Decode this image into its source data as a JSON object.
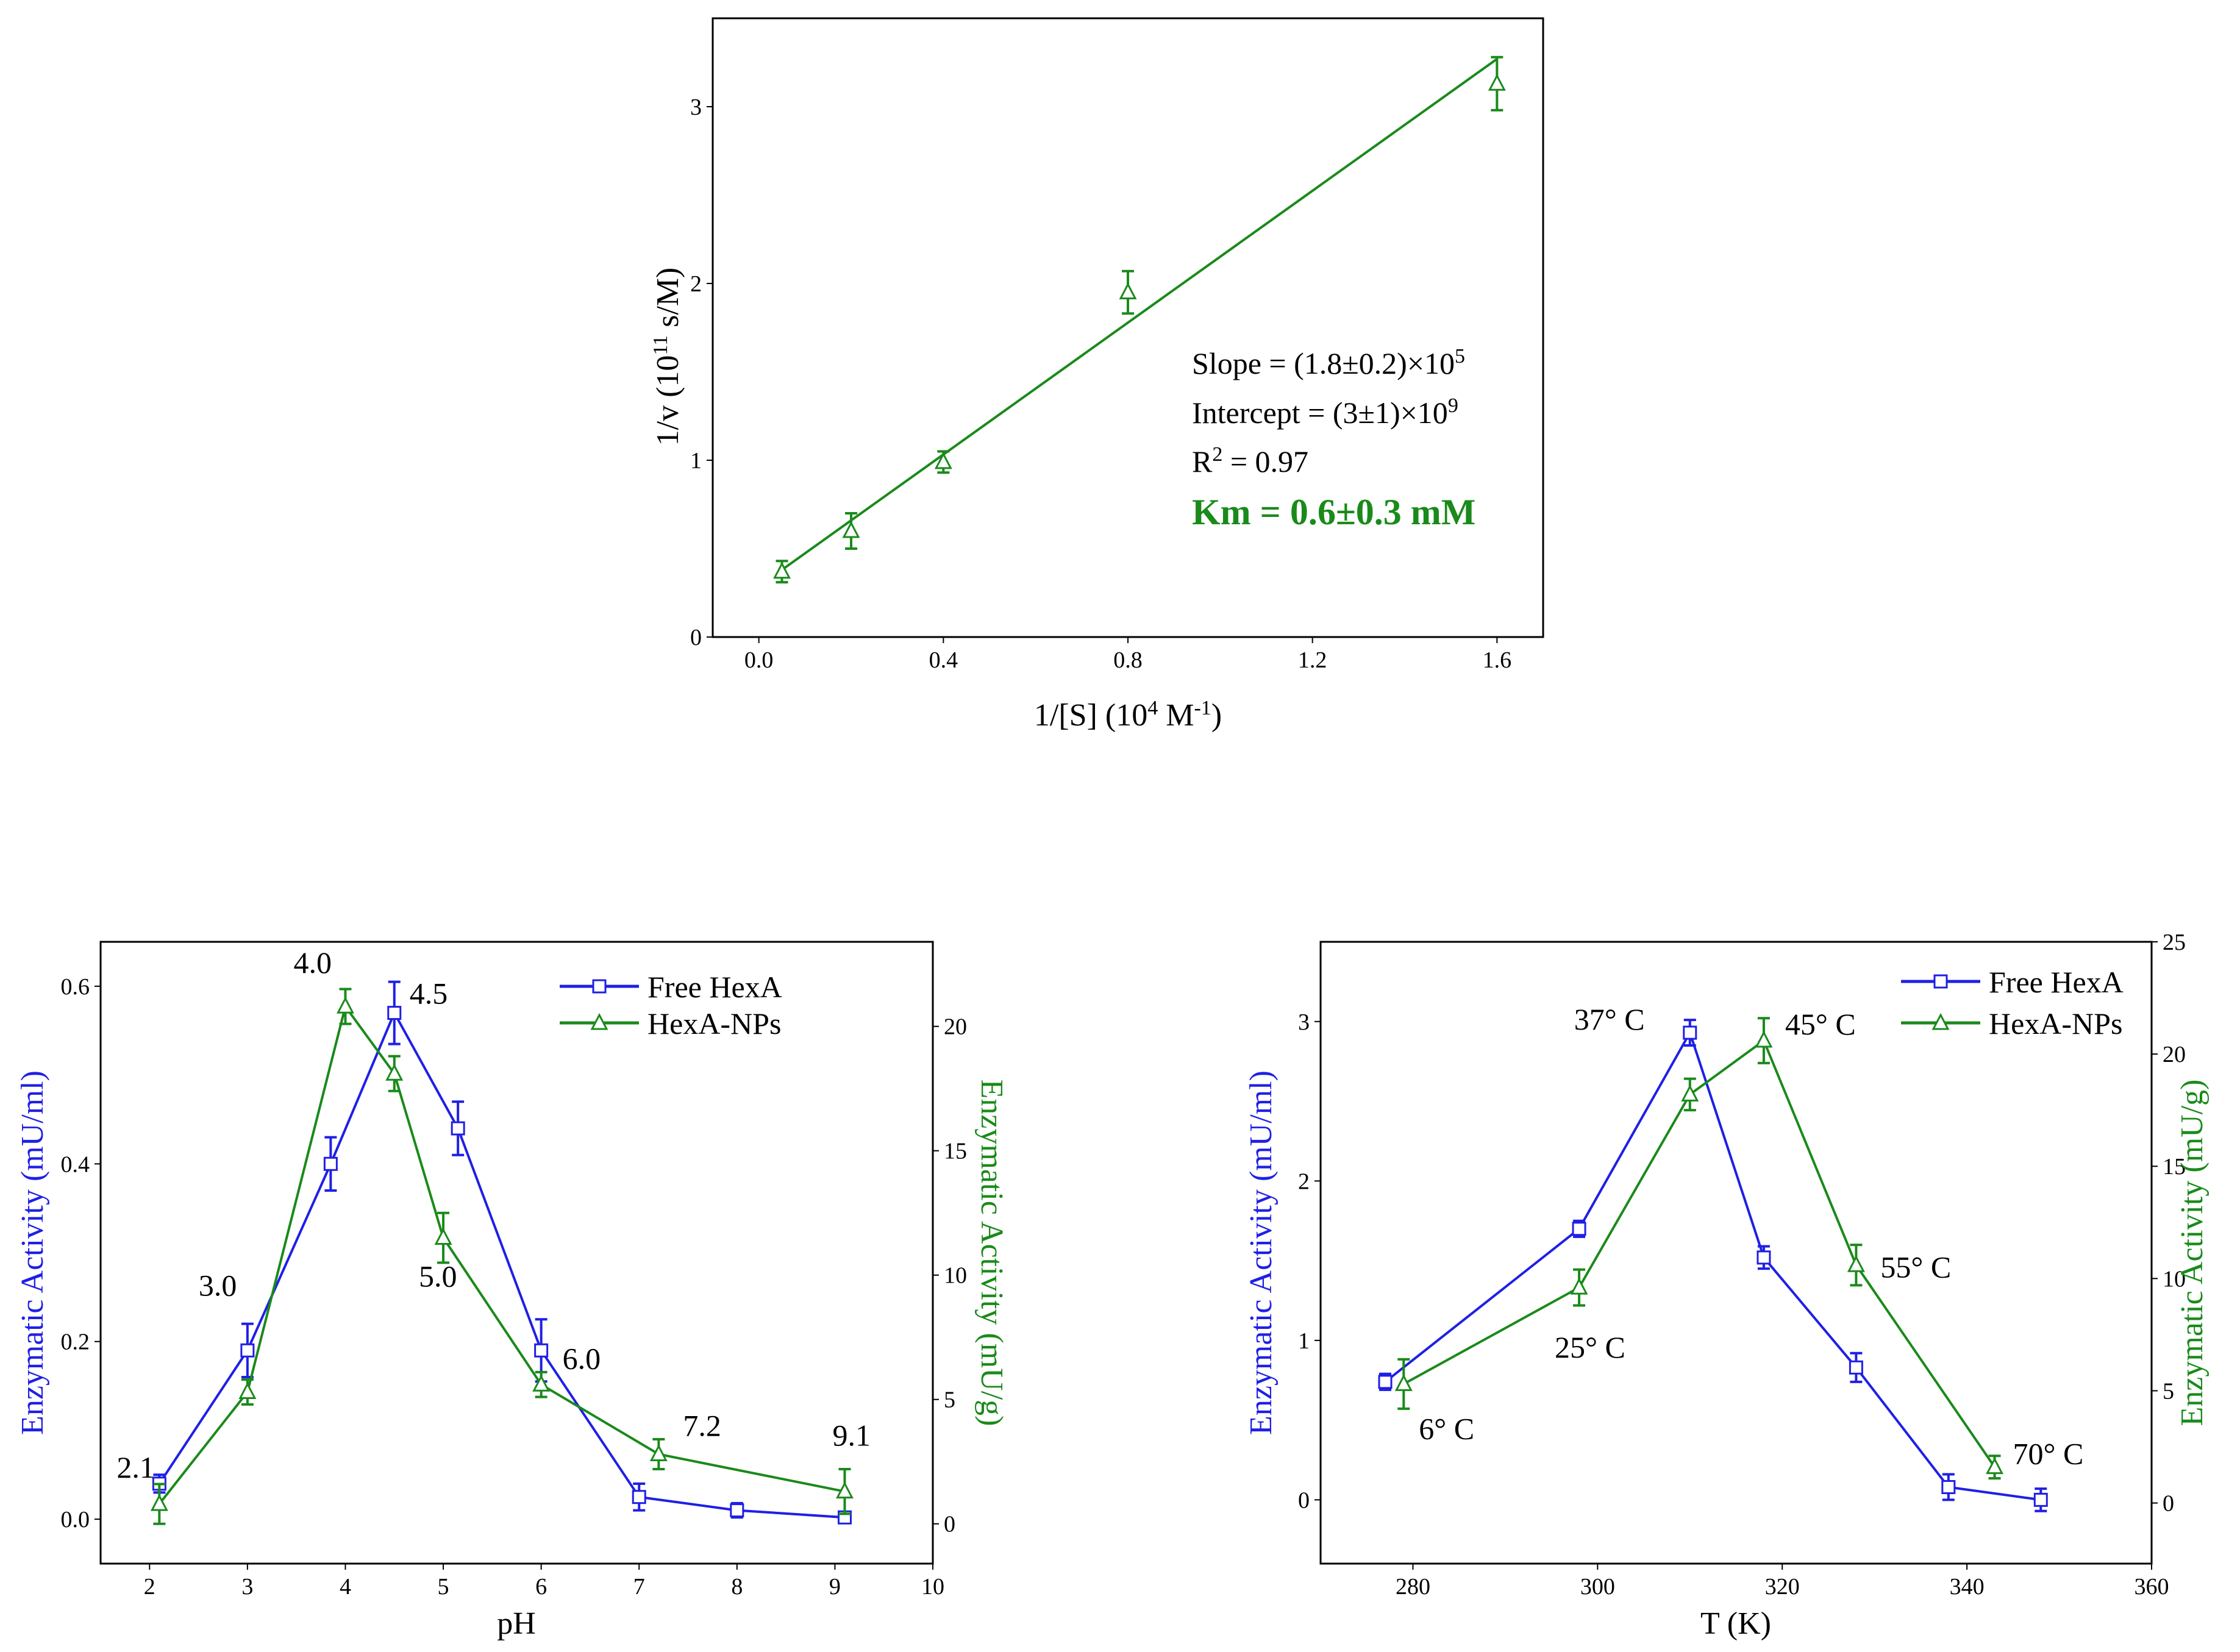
{
  "colors": {
    "free": "#1f1fe6",
    "nps": "#1a8a1a",
    "axis": "#000000"
  },
  "chart_data": [
    {
      "type": "line",
      "title": "",
      "xlabel": "1/[S] (10",
      "xlabel_sup": "4",
      "xlabel_unit": " M",
      "xlabel_unit_sup": "-1",
      "xlabel_end": ")",
      "ylabel": "1/v (10",
      "ylabel_sup": "11",
      "ylabel_end": " s/M)",
      "xlim": [
        -0.1,
        1.7
      ],
      "ylim": [
        0,
        3.5
      ],
      "xticks": [
        "0.0",
        "0.4",
        "0.8",
        "1.2",
        "1.6"
      ],
      "xtick_values": [
        0,
        0.4,
        0.8,
        1.2,
        1.6
      ],
      "yticks": [
        "0",
        "1",
        "2",
        "3"
      ],
      "ytick_values": [
        0,
        1,
        2,
        3
      ],
      "series": [
        {
          "name": "data",
          "x": [
            0.05,
            0.2,
            0.4,
            0.8,
            1.6
          ],
          "y": [
            0.37,
            0.6,
            0.99,
            1.95,
            3.13
          ],
          "err": [
            0.06,
            0.1,
            0.06,
            0.12,
            0.15
          ]
        }
      ],
      "fit": {
        "x": [
          0.05,
          1.6
        ],
        "y": [
          0.38,
          3.27
        ]
      },
      "annotation": {
        "slope_text": "Slope = (1.8±0.2)×10",
        "slope_sup": "5",
        "intercept_text": "Intercept = (3±1)×10",
        "intercept_sup": "9",
        "r2_prefix": "R",
        "r2_sup": "2",
        "r2_suffix": " = 0.97",
        "km_text": "Km = 0.6±0.3 mM"
      }
    },
    {
      "type": "line",
      "xlabel": "pH",
      "ylabel_left": "Enzymatic Activity (mU/ml)",
      "ylabel_right": "Enzymatic Activity  (mU/g)",
      "xlim": [
        1.5,
        10
      ],
      "ylim_left": [
        -0.05,
        0.65
      ],
      "ylim_right": [
        -1.6,
        23.4
      ],
      "xticks": [
        "2",
        "3",
        "4",
        "5",
        "6",
        "7",
        "8",
        "9",
        "10"
      ],
      "xtick_values": [
        2,
        3,
        4,
        5,
        6,
        7,
        8,
        9,
        10
      ],
      "yticks_left": [
        "0.0",
        "0.2",
        "0.4",
        "0.6"
      ],
      "ytick_values_left": [
        0,
        0.2,
        0.4,
        0.6
      ],
      "yticks_right": [
        "0",
        "5",
        "10",
        "15",
        "20"
      ],
      "ytick_values_right": [
        0,
        5,
        10,
        15,
        20
      ],
      "series": [
        {
          "name": "Free HexA",
          "axis": "left",
          "marker": "square",
          "x": [
            2.1,
            3,
            3.85,
            4.5,
            5.15,
            6,
            7,
            8,
            9.1
          ],
          "y": [
            0.04,
            0.19,
            0.4,
            0.57,
            0.44,
            0.19,
            0.025,
            0.01,
            0.002
          ],
          "err": [
            0.01,
            0.03,
            0.03,
            0.035,
            0.03,
            0.035,
            0.015,
            0.008,
            0.005
          ]
        },
        {
          "name": "HexA-NPs",
          "axis": "right",
          "marker": "triangle",
          "x": [
            2.1,
            3,
            4,
            4.5,
            5,
            6,
            7.2,
            9.1
          ],
          "y": [
            0.8,
            5.3,
            20.8,
            18.1,
            11.5,
            5.6,
            2.8,
            1.3
          ],
          "err": [
            0.8,
            0.5,
            0.7,
            0.7,
            1.0,
            0.5,
            0.6,
            0.9
          ]
        }
      ],
      "point_labels": [
        {
          "text": "2.1",
          "x": 2.1,
          "y": 0.04,
          "axis": "left"
        },
        {
          "text": "3.0",
          "x": 3,
          "y": 0.19,
          "axis": "left"
        },
        {
          "text": "4.0",
          "x": 4,
          "y": 20.8,
          "axis": "right"
        },
        {
          "text": "4.5",
          "x": 4.5,
          "y": 0.57,
          "axis": "left"
        },
        {
          "text": "5.0",
          "x": 5,
          "y": 11.5,
          "axis": "right"
        },
        {
          "text": "6.0",
          "x": 6,
          "y": 0.19,
          "axis": "left"
        },
        {
          "text": "7.2",
          "x": 7.2,
          "y": 2.8,
          "axis": "right"
        },
        {
          "text": "9.1",
          "x": 9.1,
          "y": 1.3,
          "axis": "right"
        }
      ],
      "legend": {
        "position": "top-right",
        "entries": [
          "Free HexA",
          "HexA-NPs"
        ]
      }
    },
    {
      "type": "line",
      "xlabel": "T (K)",
      "ylabel_left": "Enzymatic Activity  (mU/ml)",
      "ylabel_right": "Enzymatic Activity  (mU/g)",
      "xlim": [
        270,
        360
      ],
      "ylim_left": [
        -0.4,
        3.5
      ],
      "ylim_right": [
        -2.7,
        25
      ],
      "xticks": [
        "280",
        "300",
        "320",
        "340",
        "360"
      ],
      "xtick_values": [
        280,
        300,
        320,
        340,
        360
      ],
      "yticks_left": [
        "0",
        "1",
        "2",
        "3"
      ],
      "ytick_values_left": [
        0,
        1,
        2,
        3
      ],
      "yticks_right": [
        "0",
        "5",
        "10",
        "15",
        "20",
        "25"
      ],
      "ytick_values_right": [
        0,
        5,
        10,
        15,
        20,
        25
      ],
      "series": [
        {
          "name": "Free HexA",
          "axis": "left",
          "marker": "square",
          "x": [
            277,
            298,
            310,
            318,
            328,
            338,
            348
          ],
          "y": [
            0.74,
            1.7,
            2.93,
            1.52,
            0.83,
            0.08,
            0.0
          ],
          "err": [
            0.05,
            0.05,
            0.08,
            0.07,
            0.09,
            0.08,
            0.07
          ]
        },
        {
          "name": "HexA-NPs",
          "axis": "right",
          "marker": "triangle",
          "x": [
            279,
            298,
            310,
            318,
            328,
            343
          ],
          "y": [
            5.3,
            9.6,
            18.2,
            20.6,
            10.6,
            1.6
          ],
          "err": [
            1.1,
            0.8,
            0.7,
            1.0,
            0.9,
            0.5
          ]
        }
      ],
      "point_labels": [
        {
          "text": "6° C",
          "x": 279,
          "y": 5.3,
          "axis": "right"
        },
        {
          "text": "25° C",
          "x": 298,
          "y": 9.6,
          "axis": "right"
        },
        {
          "text": "37° C",
          "x": 310,
          "y": 2.93,
          "axis": "left"
        },
        {
          "text": "45° C",
          "x": 318,
          "y": 20.6,
          "axis": "right"
        },
        {
          "text": "55° C",
          "x": 328,
          "y": 10.6,
          "axis": "right"
        },
        {
          "text": "70° C",
          "x": 343,
          "y": 1.6,
          "axis": "right"
        }
      ],
      "legend": {
        "position": "top-right",
        "entries": [
          "Free HexA",
          "HexA-NPs"
        ]
      }
    }
  ]
}
